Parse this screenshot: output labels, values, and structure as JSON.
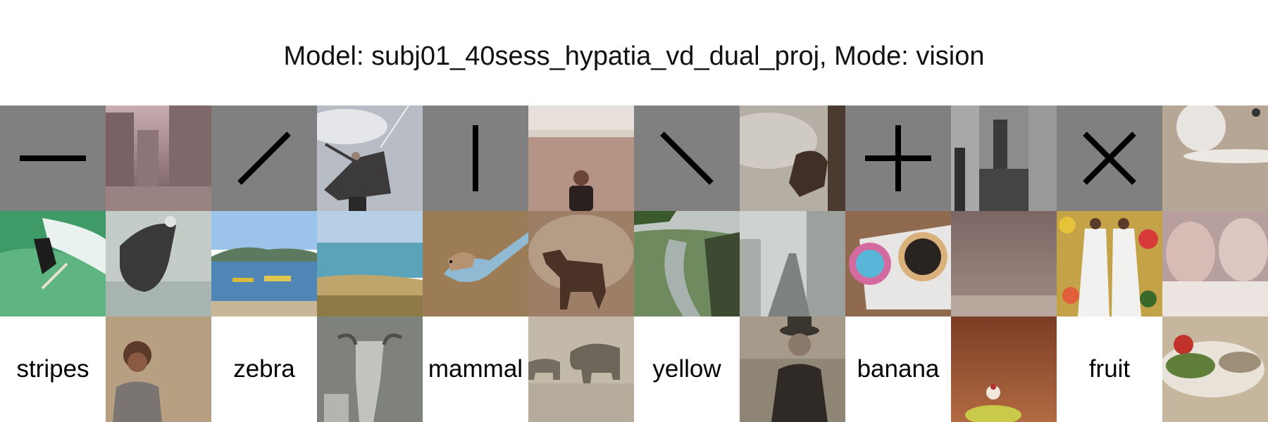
{
  "title": "Model: subj01_40sess_hypatia_vd_dual_proj, Mode: vision",
  "rows": [
    {
      "cells": [
        {
          "kind": "stimulus",
          "icon": "horizontal-line-icon"
        },
        {
          "kind": "image",
          "desc": "misty-ruins"
        },
        {
          "kind": "stimulus",
          "icon": "diagonal-forward-line-icon"
        },
        {
          "kind": "image",
          "desc": "person-with-cape"
        },
        {
          "kind": "stimulus",
          "icon": "vertical-line-icon"
        },
        {
          "kind": "image",
          "desc": "child-on-stage"
        },
        {
          "kind": "stimulus",
          "icon": "diagonal-back-line-icon"
        },
        {
          "kind": "image",
          "desc": "foggy-figure"
        },
        {
          "kind": "stimulus",
          "icon": "plus-icon"
        },
        {
          "kind": "image",
          "desc": "statue-street"
        },
        {
          "kind": "stimulus",
          "icon": "x-cross-icon"
        },
        {
          "kind": "image",
          "desc": "white-sphere"
        }
      ]
    },
    {
      "cells": [
        {
          "kind": "image",
          "desc": "surfer"
        },
        {
          "kind": "image",
          "desc": "dark-creature"
        },
        {
          "kind": "image",
          "desc": "boats-bay"
        },
        {
          "kind": "image",
          "desc": "beach-sea"
        },
        {
          "kind": "image",
          "desc": "small-bird"
        },
        {
          "kind": "image",
          "desc": "small-deer"
        },
        {
          "kind": "image",
          "desc": "river-valley"
        },
        {
          "kind": "image",
          "desc": "foggy-city"
        },
        {
          "kind": "image",
          "desc": "donuts-box"
        },
        {
          "kind": "image",
          "desc": "blurry-room"
        },
        {
          "kind": "image",
          "desc": "two-figures-floral"
        },
        {
          "kind": "image",
          "desc": "blurry-children"
        }
      ]
    },
    {
      "cells": [
        {
          "kind": "word",
          "text": "stripes"
        },
        {
          "kind": "image",
          "desc": "smiling-woman"
        },
        {
          "kind": "word",
          "text": "zebra"
        },
        {
          "kind": "image",
          "desc": "cattle"
        },
        {
          "kind": "word",
          "text": "mammal"
        },
        {
          "kind": "image",
          "desc": "elephants"
        },
        {
          "kind": "word",
          "text": "yellow"
        },
        {
          "kind": "image",
          "desc": "man-with-hat"
        },
        {
          "kind": "word",
          "text": "banana"
        },
        {
          "kind": "image",
          "desc": "dessert-table"
        },
        {
          "kind": "word",
          "text": "fruit"
        },
        {
          "kind": "image",
          "desc": "food-plate"
        }
      ]
    }
  ]
}
